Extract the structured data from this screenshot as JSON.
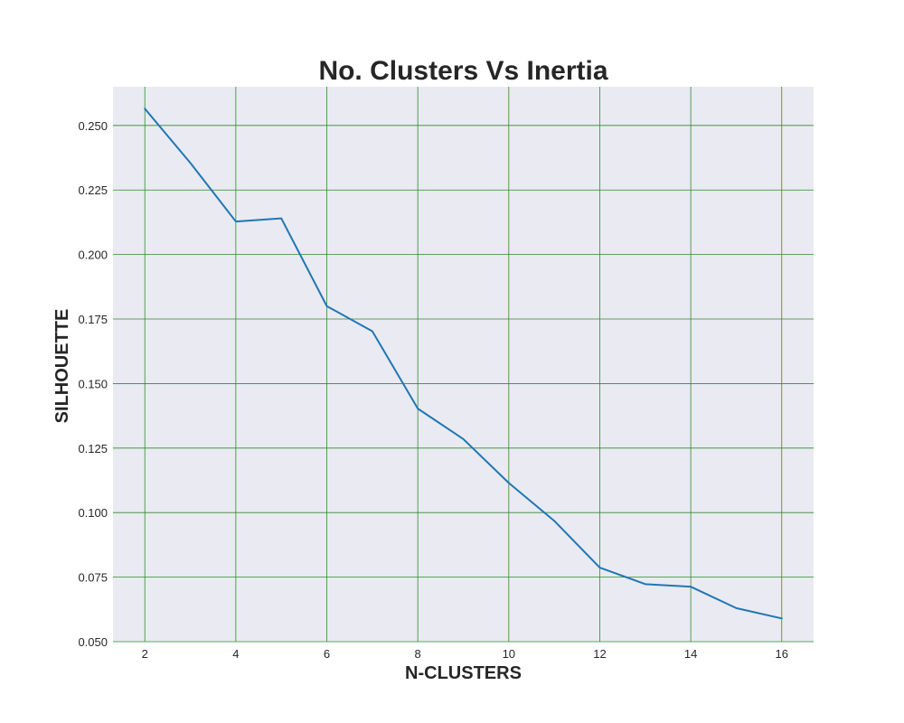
{
  "chart_data": {
    "type": "line",
    "title": "No. Clusters Vs Inertia",
    "xlabel": "N-CLUSTERS",
    "ylabel": "SILHOUETTE",
    "xlim": [
      1.3,
      16.7
    ],
    "ylim": [
      0.05,
      0.265
    ],
    "x_ticks": [
      2,
      4,
      6,
      8,
      10,
      12,
      14,
      16
    ],
    "y_ticks": [
      0.05,
      0.075,
      0.1,
      0.125,
      0.15,
      0.175,
      0.2,
      0.225,
      0.25
    ],
    "x_tick_labels": [
      "2",
      "4",
      "6",
      "8",
      "10",
      "12",
      "14",
      "16"
    ],
    "y_tick_labels": [
      "0.050",
      "0.075",
      "0.100",
      "0.125",
      "0.150",
      "0.175",
      "0.200",
      "0.225",
      "0.250"
    ],
    "grid": true,
    "colors": {
      "plot_background": "#eaeaf2",
      "grid": "#2e8b2e",
      "line": "#1f77b4"
    },
    "series": [
      {
        "x": [
          2,
          3,
          4,
          5,
          6,
          7,
          8,
          9,
          10,
          11,
          12,
          13,
          14,
          15,
          16
        ],
        "values": [
          0.2565,
          0.2355,
          0.2128,
          0.214,
          0.18,
          0.1703,
          0.1403,
          0.1285,
          0.1115,
          0.0968,
          0.0787,
          0.0723,
          0.0713,
          0.063,
          0.059
        ]
      }
    ]
  }
}
